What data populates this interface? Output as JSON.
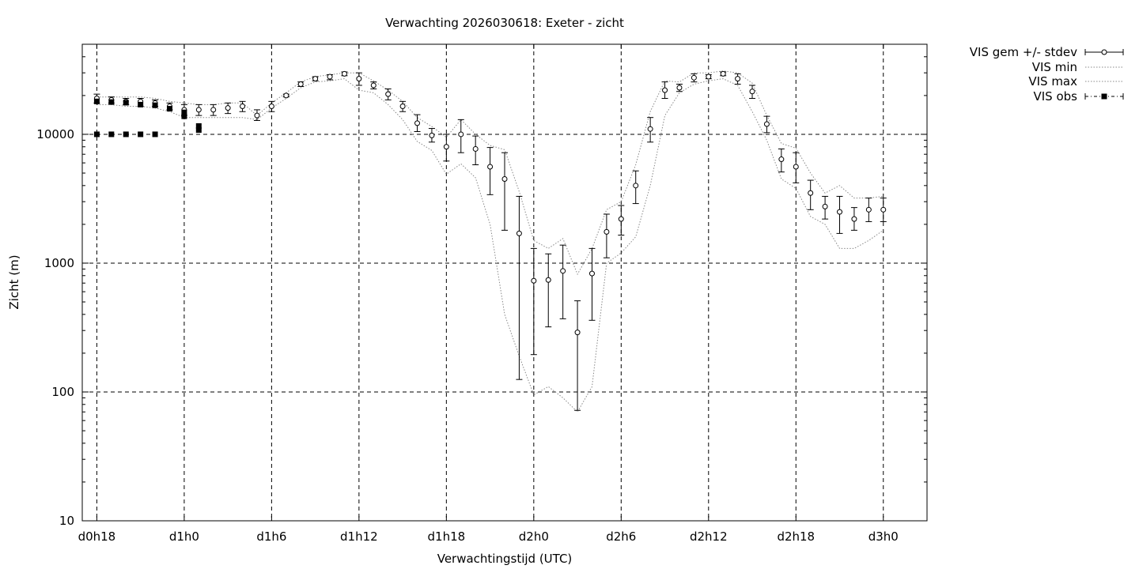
{
  "chart_data": {
    "type": "scatter",
    "title": "Verwachting 2026030618: Exeter - zicht",
    "xlabel": "Verwachtingstijd (UTC)",
    "ylabel": "Zicht (m)",
    "xlim": [
      -1,
      57
    ],
    "xticks": [
      {
        "value": 0,
        "label": "d0h18"
      },
      {
        "value": 6,
        "label": "d1h0"
      },
      {
        "value": 12,
        "label": "d1h6"
      },
      {
        "value": 18,
        "label": "d1h12"
      },
      {
        "value": 24,
        "label": "d1h18"
      },
      {
        "value": 30,
        "label": "d2h0"
      },
      {
        "value": 36,
        "label": "d2h6"
      },
      {
        "value": 42,
        "label": "d2h12"
      },
      {
        "value": 48,
        "label": "d2h18"
      },
      {
        "value": 54,
        "label": "d3h0"
      }
    ],
    "y_scale": "log",
    "ylim": [
      10,
      50000
    ],
    "yticks": [
      {
        "value": 10,
        "label": "10"
      },
      {
        "value": 100,
        "label": "100"
      },
      {
        "value": 1000,
        "label": "1000"
      },
      {
        "value": 10000,
        "label": "10000"
      }
    ],
    "grid": true,
    "legend_position": "outside-top-right",
    "series": [
      {
        "name": "VIS gem +/- stdev",
        "x": [
          0,
          1,
          2,
          3,
          4,
          5,
          6,
          7,
          8,
          9,
          10,
          11,
          12,
          13,
          14,
          15,
          16,
          17,
          18,
          19,
          20,
          21,
          22,
          23,
          24,
          25,
          26,
          27,
          28,
          29,
          30,
          31,
          32,
          33,
          34,
          35,
          36,
          37,
          38,
          39,
          40,
          41,
          42,
          43,
          44,
          45,
          46,
          47,
          48,
          49,
          50,
          51,
          52,
          53,
          54
        ],
        "mean": [
          19000,
          18500,
          18000,
          18000,
          17500,
          16500,
          15500,
          15500,
          15500,
          16000,
          16500,
          14000,
          16500,
          20000,
          24500,
          27000,
          28000,
          29500,
          27000,
          24000,
          20500,
          16500,
          12200,
          9800,
          8000,
          10000,
          7700,
          5600,
          4500,
          1700,
          730,
          740,
          870,
          290,
          830,
          1750,
          2200,
          4000,
          11000,
          22000,
          23000,
          27500,
          28000,
          29500,
          27000,
          21500,
          12000,
          6400,
          5600,
          3500,
          2750,
          2500,
          2200,
          2600,
          2600
        ],
        "low": [
          17500,
          17500,
          17000,
          16500,
          16500,
          15500,
          14000,
          14000,
          14000,
          14500,
          15000,
          12800,
          15000,
          19500,
          23500,
          26000,
          26500,
          28500,
          24000,
          22500,
          18500,
          15000,
          10500,
          8700,
          6200,
          7200,
          5800,
          3400,
          1800,
          125,
          195,
          320,
          370,
          72,
          360,
          1100,
          1650,
          2900,
          8700,
          19000,
          21500,
          25500,
          27000,
          28500,
          24500,
          19000,
          10300,
          5100,
          4200,
          2600,
          2200,
          1700,
          1800,
          2100,
          2100
        ],
        "high": [
          20500,
          19500,
          19000,
          19000,
          18500,
          17500,
          17000,
          17000,
          17000,
          17500,
          18000,
          15500,
          18000,
          20500,
          25500,
          28000,
          29000,
          30500,
          30000,
          25500,
          22500,
          18000,
          14200,
          11100,
          10000,
          13000,
          9700,
          7900,
          7200,
          3300,
          1300,
          1180,
          1380,
          510,
          1300,
          2400,
          2800,
          5200,
          13500,
          25500,
          24500,
          29500,
          29000,
          30500,
          29500,
          24000,
          13800,
          7700,
          7200,
          4400,
          3300,
          3300,
          2700,
          3200,
          3200
        ]
      },
      {
        "name": "VIS min",
        "x": [
          0,
          1,
          2,
          3,
          4,
          5,
          6,
          7,
          8,
          9,
          10,
          11,
          12,
          13,
          14,
          15,
          16,
          17,
          18,
          19,
          20,
          21,
          22,
          23,
          24,
          25,
          26,
          27,
          28,
          29,
          30,
          31,
          32,
          33,
          34,
          35,
          36,
          37,
          38,
          39,
          40,
          41,
          42,
          43,
          44,
          45,
          46,
          47,
          48,
          49,
          50,
          51,
          52,
          53,
          54
        ],
        "values": [
          17000,
          17000,
          16500,
          16500,
          16000,
          15000,
          13500,
          13500,
          13500,
          13500,
          13500,
          13000,
          16000,
          19000,
          23000,
          25500,
          26000,
          27000,
          22000,
          21000,
          17000,
          13000,
          8800,
          7500,
          4900,
          5900,
          4600,
          2000,
          400,
          190,
          95,
          110,
          90,
          70,
          110,
          1000,
          1200,
          1600,
          4000,
          14000,
          21000,
          24500,
          26000,
          27000,
          24000,
          15000,
          9000,
          4500,
          3800,
          2300,
          2000,
          1300,
          1300,
          1500,
          1800
        ]
      },
      {
        "name": "VIS max",
        "x": [
          0,
          1,
          2,
          3,
          4,
          5,
          6,
          7,
          8,
          9,
          10,
          11,
          12,
          13,
          14,
          15,
          16,
          17,
          18,
          19,
          20,
          21,
          22,
          23,
          24,
          25,
          26,
          27,
          28,
          29,
          30,
          31,
          32,
          33,
          34,
          35,
          36,
          37,
          38,
          39,
          40,
          41,
          42,
          43,
          44,
          45,
          46,
          47,
          48,
          49,
          50,
          51,
          52,
          53,
          54
        ],
        "values": [
          19500,
          19500,
          19500,
          19500,
          19000,
          18000,
          17500,
          17000,
          17000,
          17500,
          17500,
          14000,
          17500,
          21000,
          25500,
          28000,
          29000,
          30000,
          30000,
          26000,
          22000,
          18000,
          13500,
          11500,
          9500,
          13000,
          10000,
          8200,
          7600,
          3600,
          1500,
          1300,
          1550,
          820,
          1300,
          2600,
          3000,
          5800,
          15000,
          26000,
          25500,
          30000,
          30000,
          31000,
          30000,
          25000,
          14000,
          8500,
          7800,
          5000,
          3500,
          4000,
          3200,
          3200,
          3300
        ]
      },
      {
        "name": "VIS obs",
        "x": [
          0,
          0,
          1,
          1,
          2,
          2,
          3,
          3,
          4,
          4,
          5,
          6,
          6,
          7,
          7
        ],
        "values": [
          18000,
          10000,
          17800,
          10000,
          17600,
          10000,
          17000,
          10000,
          16800,
          10000,
          15800,
          14800,
          13800,
          11600,
          10800
        ]
      }
    ]
  }
}
